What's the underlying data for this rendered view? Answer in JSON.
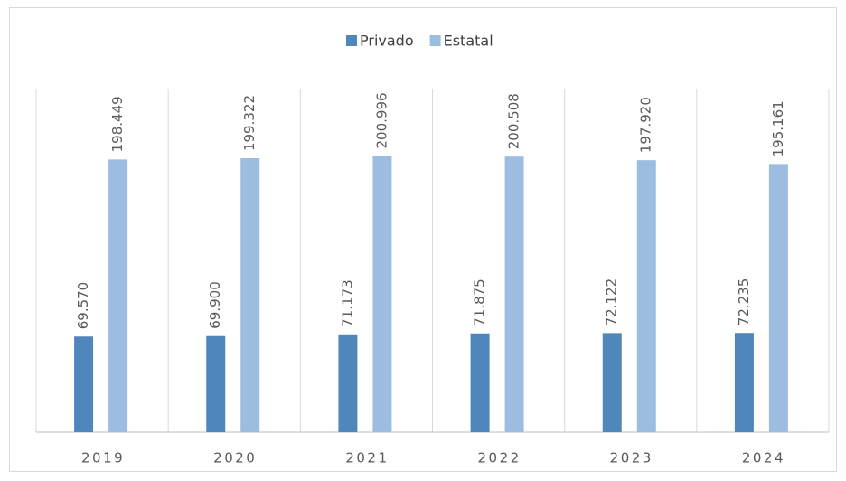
{
  "chart_data": {
    "type": "bar",
    "categories": [
      "2019",
      "2020",
      "2021",
      "2022",
      "2023",
      "2024"
    ],
    "series": [
      {
        "name": "Privado",
        "color": "#4f86bc",
        "values": [
          69570,
          69900,
          71173,
          71875,
          72122,
          72235
        ],
        "value_labels": [
          "69.570",
          "69.900",
          "71.173",
          "71.875",
          "72.122",
          "72.235"
        ]
      },
      {
        "name": "Estatal",
        "color": "#9cbce0",
        "values": [
          198449,
          199322,
          200996,
          200508,
          197920,
          195161
        ],
        "value_labels": [
          "198.449",
          "199.322",
          "200.996",
          "200.508",
          "197.920",
          "195.161"
        ]
      }
    ],
    "ylim": [
      0,
      250000
    ],
    "legend": "top"
  }
}
